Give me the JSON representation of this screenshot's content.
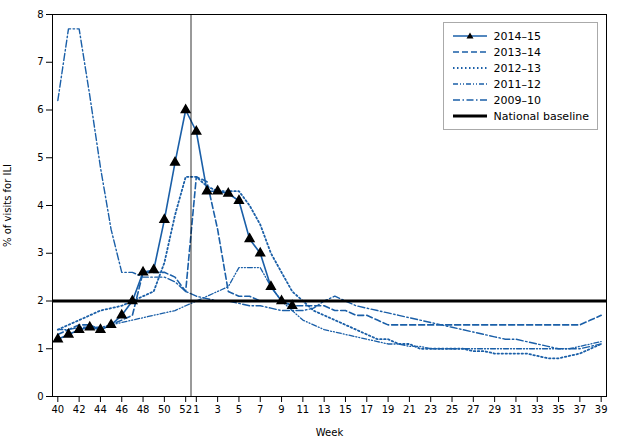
{
  "chart_data": {
    "type": "line",
    "xlabel": "Week",
    "ylabel": "% of visits for ILI",
    "ylim": [
      0,
      8
    ],
    "yticks": [
      0,
      1,
      2,
      3,
      4,
      5,
      6,
      7,
      8
    ],
    "grid": false,
    "legend": "upper right",
    "categories": [
      "40",
      null,
      "42",
      null,
      "44",
      null,
      "46",
      null,
      "48",
      null,
      "50",
      null,
      "52",
      "1",
      null,
      "3",
      null,
      "5",
      null,
      "7",
      null,
      "9",
      null,
      "11",
      null,
      "13",
      null,
      "15",
      null,
      "17",
      null,
      "19",
      null,
      "21",
      null,
      "23",
      null,
      "25",
      null,
      "27",
      null,
      "29",
      null,
      "31",
      null,
      "33",
      null,
      "35",
      null,
      "37",
      null,
      "39"
    ],
    "series": [
      {
        "name": "2014–15",
        "color": "#1a5fa8",
        "line_style": "solid",
        "marker": "triangle",
        "values": [
          1.2,
          1.3,
          1.4,
          1.45,
          1.4,
          1.5,
          1.7,
          2.0,
          2.6,
          2.65,
          3.7,
          4.9,
          6.0,
          5.55,
          4.3,
          4.3,
          4.25,
          4.1,
          3.3,
          3.0,
          2.3,
          2.0,
          1.9,
          null,
          null,
          null,
          null,
          null,
          null,
          null,
          null,
          null,
          null,
          null,
          null,
          null,
          null,
          null,
          null,
          null,
          null,
          null,
          null,
          null,
          null,
          null,
          null,
          null,
          null,
          null,
          null,
          null
        ]
      },
      {
        "name": "2013–14",
        "color": "#1a5fa8",
        "line_style": "dashed",
        "values": [
          1.3,
          1.4,
          1.5,
          1.5,
          1.4,
          1.5,
          1.6,
          1.7,
          2.6,
          2.6,
          2.6,
          2.5,
          2.2,
          4.6,
          4.5,
          3.5,
          2.2,
          2.1,
          2.1,
          2.0,
          2.0,
          2.0,
          1.9,
          1.9,
          1.9,
          1.9,
          1.8,
          1.8,
          1.7,
          1.7,
          1.6,
          1.5,
          1.5,
          1.5,
          1.5,
          1.5,
          1.5,
          1.5,
          1.5,
          1.5,
          1.5,
          1.5,
          1.5,
          1.5,
          1.5,
          1.5,
          1.5,
          1.5,
          1.5,
          1.5,
          1.6,
          1.7
        ]
      },
      {
        "name": "2012–13",
        "color": "#1a5fa8",
        "line_style": "dotted",
        "values": [
          1.4,
          1.5,
          1.6,
          1.7,
          1.8,
          1.85,
          1.9,
          2.0,
          2.1,
          2.2,
          2.8,
          3.8,
          4.6,
          4.6,
          4.4,
          4.3,
          4.3,
          4.3,
          4.0,
          3.6,
          3.0,
          2.6,
          2.2,
          2.0,
          1.8,
          1.7,
          1.6,
          1.5,
          1.4,
          1.3,
          1.2,
          1.2,
          1.1,
          1.1,
          1.0,
          1.0,
          1.0,
          1.0,
          1.0,
          0.95,
          0.95,
          0.9,
          0.9,
          0.9,
          0.9,
          0.85,
          0.8,
          0.8,
          0.85,
          0.9,
          1.0,
          1.1
        ]
      },
      {
        "name": "2011–12",
        "color": "#1a5fa8",
        "line_style": "dashdotdot",
        "values": [
          1.4,
          1.4,
          1.45,
          1.45,
          1.45,
          1.5,
          1.55,
          1.6,
          1.65,
          1.7,
          1.75,
          1.8,
          1.9,
          2.0,
          2.1,
          2.2,
          2.3,
          2.7,
          2.7,
          2.7,
          2.3,
          2.0,
          1.8,
          1.6,
          1.5,
          1.4,
          1.35,
          1.3,
          1.25,
          1.2,
          1.15,
          1.1,
          1.1,
          1.05,
          1.05,
          1.0,
          1.0,
          1.0,
          1.0,
          1.0,
          1.0,
          1.0,
          1.0,
          1.0,
          1.0,
          1.0,
          1.0,
          1.0,
          1.0,
          1.05,
          1.1,
          1.15
        ]
      },
      {
        "name": "2009–10",
        "color": "#1a5fa8",
        "line_style": "dashdot",
        "values": [
          6.2,
          7.7,
          7.7,
          6.3,
          4.8,
          3.5,
          2.6,
          2.6,
          2.5,
          2.5,
          2.5,
          2.4,
          2.2,
          2.1,
          2.05,
          2.0,
          2.0,
          1.95,
          1.9,
          1.9,
          1.85,
          1.8,
          1.8,
          1.8,
          1.85,
          2.0,
          2.1,
          2.0,
          1.9,
          1.85,
          1.8,
          1.75,
          1.7,
          1.65,
          1.6,
          1.55,
          1.5,
          1.45,
          1.4,
          1.35,
          1.3,
          1.25,
          1.2,
          1.2,
          1.15,
          1.1,
          1.05,
          1.0,
          1.0,
          1.0,
          1.05,
          1.1
        ]
      }
    ],
    "baseline": {
      "name": "National baseline",
      "value": 2.0,
      "color": "#000000"
    }
  }
}
